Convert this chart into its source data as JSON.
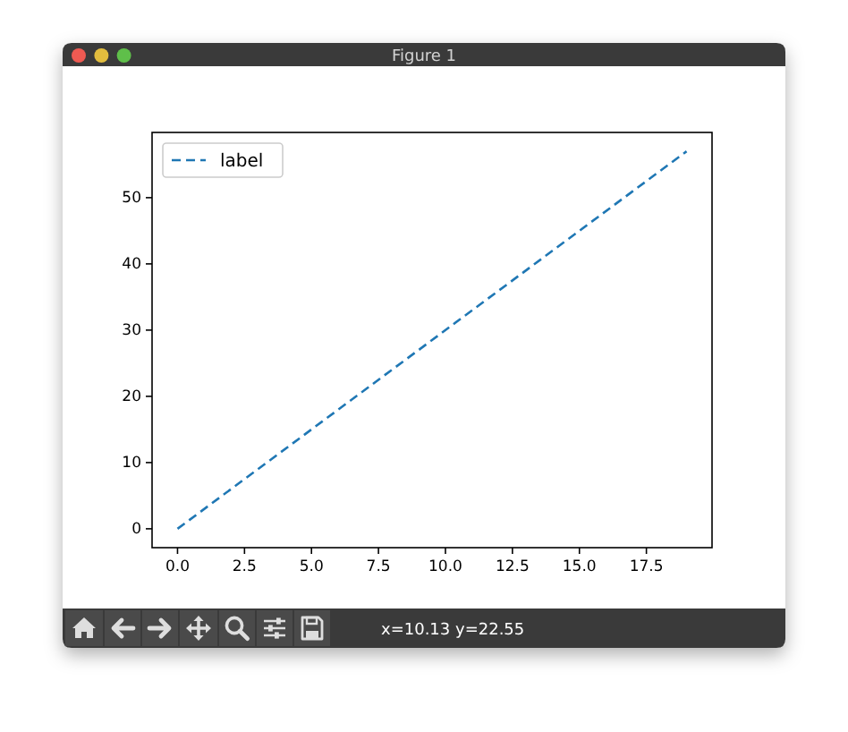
{
  "chart_data": {
    "type": "line",
    "annotations": [
      "Figure 1",
      "x=10.13 y=22.55"
    ],
    "x": [
      0,
      19
    ],
    "series": [
      {
        "name": "label",
        "color": "#1f77b4",
        "values": [
          0,
          57
        ]
      }
    ],
    "xlim": [
      -0.95,
      19.95
    ],
    "ylim": [
      -2.85,
      59.85
    ],
    "xticks": [
      {
        "value": 0,
        "label": "0.0"
      },
      {
        "value": 2.5,
        "label": "2.5"
      },
      {
        "value": 5,
        "label": "5.0"
      },
      {
        "value": 7.5,
        "label": "7.5"
      },
      {
        "value": 10,
        "label": "10.0"
      },
      {
        "value": 12.5,
        "label": "12.5"
      },
      {
        "value": 15,
        "label": "15.0"
      },
      {
        "value": 17.5,
        "label": "17.5"
      }
    ],
    "yticks": [
      0,
      10,
      20,
      30,
      40,
      50
    ],
    "legend": "top left",
    "line_style": "dashed"
  }
}
